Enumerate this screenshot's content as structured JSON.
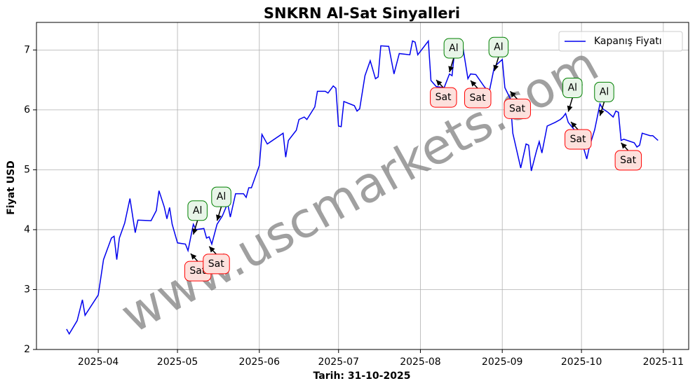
{
  "chart_data": {
    "type": "line",
    "title": "SNKRN Al-Sat Sinyalleri",
    "xlabel": "Tarih: 31-10-2025",
    "ylabel": "Fiyat USD",
    "watermark": "www.uscmarkets.com",
    "x": [
      79,
      80,
      83,
      85,
      86,
      91,
      93,
      96,
      97,
      98,
      99,
      101,
      103,
      105,
      106,
      111,
      113,
      114,
      116,
      117,
      118,
      119,
      121,
      124,
      125,
      127,
      128,
      131,
      132,
      133,
      134,
      136,
      138,
      140,
      141,
      143,
      146,
      147,
      148,
      149,
      152,
      153,
      155,
      161,
      162,
      163,
      166,
      167,
      169,
      170,
      173,
      174,
      177,
      178,
      180,
      181,
      182,
      183,
      184,
      188,
      189,
      190,
      192,
      194,
      196,
      197,
      198,
      201,
      203,
      205,
      209,
      210,
      211,
      212,
      216,
      217,
      219,
      222,
      224,
      225,
      226,
      229,
      231,
      232,
      234,
      237,
      239,
      241,
      244,
      245,
      247,
      248,
      251,
      253,
      254,
      255,
      257,
      258,
      259,
      261,
      264,
      266,
      267,
      268,
      269,
      272,
      274,
      276,
      277,
      279,
      281,
      282,
      284,
      286,
      287,
      288,
      289,
      290,
      294,
      295,
      296,
      297,
      300,
      301,
      303
    ],
    "series": [
      {
        "name": "Kapanış Fiyatı",
        "color": "#0000ee",
        "values": [
          2.34,
          2.26,
          2.48,
          2.83,
          2.57,
          2.91,
          3.5,
          3.86,
          3.89,
          3.5,
          3.86,
          4.11,
          4.52,
          3.95,
          4.16,
          4.15,
          4.32,
          4.65,
          4.38,
          4.18,
          4.37,
          4.09,
          3.78,
          3.76,
          3.65,
          4.09,
          4.0,
          4.02,
          3.86,
          3.88,
          3.76,
          4.09,
          4.23,
          4.44,
          4.21,
          4.6,
          4.6,
          4.54,
          4.7,
          4.7,
          5.07,
          5.59,
          5.43,
          5.61,
          5.21,
          5.49,
          5.66,
          5.84,
          5.88,
          5.84,
          6.05,
          6.31,
          6.31,
          6.28,
          6.4,
          6.36,
          5.73,
          5.72,
          6.14,
          6.07,
          5.98,
          6.02,
          6.57,
          6.82,
          6.52,
          6.55,
          7.07,
          7.06,
          6.6,
          6.94,
          6.92,
          7.15,
          7.13,
          6.92,
          7.15,
          6.49,
          6.39,
          6.37,
          6.6,
          6.57,
          7.01,
          7.07,
          6.52,
          6.6,
          6.59,
          6.4,
          6.29,
          6.72,
          6.84,
          6.37,
          6.19,
          5.61,
          5.03,
          5.43,
          5.41,
          4.98,
          5.32,
          5.47,
          5.28,
          5.73,
          5.79,
          5.84,
          5.88,
          5.94,
          5.79,
          5.63,
          5.49,
          5.18,
          5.38,
          5.67,
          6.1,
          6.02,
          5.96,
          5.88,
          5.98,
          5.96,
          5.49,
          5.51,
          5.45,
          5.38,
          5.41,
          5.61,
          5.57,
          5.57,
          5.49
        ]
      }
    ],
    "annotations": [
      {
        "text": "Al",
        "x": 127,
        "y": 3.92,
        "placement": "above",
        "color": "#008000",
        "fill": "#e8f5e8"
      },
      {
        "text": "Sat",
        "x": 126,
        "y": 3.6,
        "placement": "below",
        "color": "#ff0000",
        "fill": "#fde0dc"
      },
      {
        "text": "Al",
        "x": 136,
        "y": 4.15,
        "placement": "above",
        "color": "#008000",
        "fill": "#e8f5e8"
      },
      {
        "text": "Sat",
        "x": 133,
        "y": 3.72,
        "placement": "below",
        "color": "#ff0000",
        "fill": "#fde0dc"
      },
      {
        "text": "Sat",
        "x": 219,
        "y": 6.5,
        "placement": "below",
        "color": "#ff0000",
        "fill": "#fde0dc"
      },
      {
        "text": "Al",
        "x": 224,
        "y": 6.63,
        "placement": "above",
        "color": "#008000",
        "fill": "#e8f5e8"
      },
      {
        "text": "Sat",
        "x": 232,
        "y": 6.49,
        "placement": "below",
        "color": "#ff0000",
        "fill": "#fde0dc"
      },
      {
        "text": "Al",
        "x": 241,
        "y": 6.65,
        "placement": "above",
        "color": "#008000",
        "fill": "#e8f5e8"
      },
      {
        "text": "Sat",
        "x": 247,
        "y": 6.31,
        "placement": "below",
        "color": "#ff0000",
        "fill": "#fde0dc"
      },
      {
        "text": "Al",
        "x": 269,
        "y": 5.97,
        "placement": "above",
        "color": "#008000",
        "fill": "#e8f5e8"
      },
      {
        "text": "Sat",
        "x": 270,
        "y": 5.8,
        "placement": "below",
        "color": "#ff0000",
        "fill": "#fde0dc"
      },
      {
        "text": "Al",
        "x": 281,
        "y": 5.9,
        "placement": "above",
        "color": "#008000",
        "fill": "#e8f5e8"
      },
      {
        "text": "Sat",
        "x": 289,
        "y": 5.45,
        "placement": "below",
        "color": "#ff0000",
        "fill": "#fde0dc"
      }
    ],
    "xlim": [
      67.6,
      314.6
    ],
    "xticks": [
      {
        "value": 91,
        "label": "2025-04"
      },
      {
        "value": 121,
        "label": "2025-05"
      },
      {
        "value": 152,
        "label": "2025-06"
      },
      {
        "value": 182,
        "label": "2025-07"
      },
      {
        "value": 213,
        "label": "2025-08"
      },
      {
        "value": 244,
        "label": "2025-09"
      },
      {
        "value": 274,
        "label": "2025-10"
      },
      {
        "value": 305,
        "label": "2025-11"
      }
    ],
    "ylim": [
      2.0,
      7.46
    ],
    "yticks": [
      2,
      3,
      4,
      5,
      6,
      7
    ],
    "grid": true,
    "legend": "upper right"
  }
}
